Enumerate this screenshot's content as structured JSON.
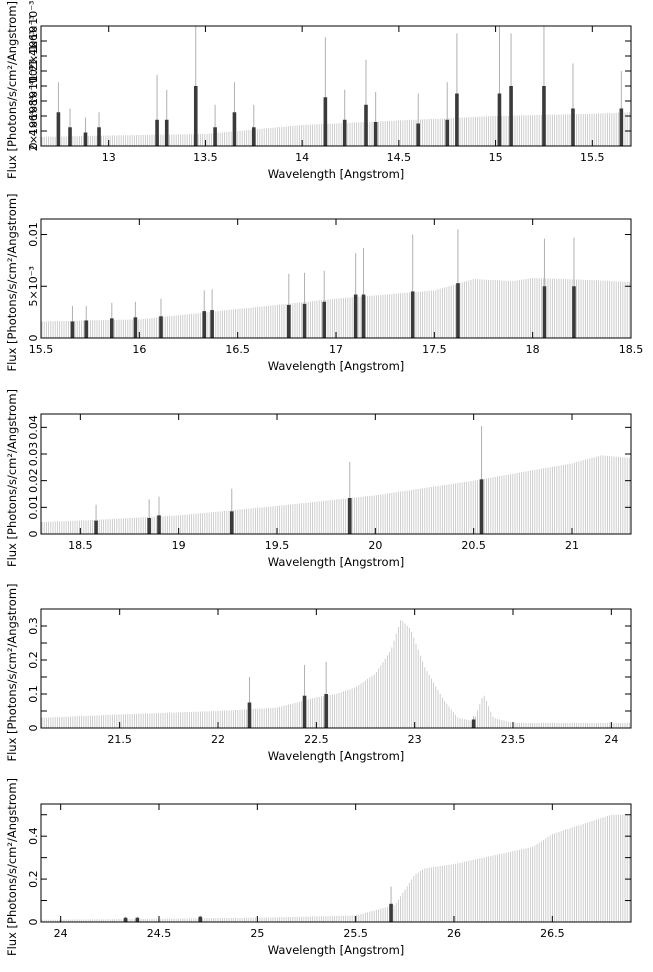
{
  "chart_data": [
    {
      "type": "bar",
      "xlabel": "Wavelength [Angstrom]",
      "ylabel": "Flux [Photons/s/cm²/Angstrom]",
      "xlim": [
        12.65,
        15.7
      ],
      "ylim": [
        0,
        0.0016
      ],
      "xticks": [
        13,
        13.5,
        14,
        14.5,
        15,
        15.5
      ],
      "xtick_labels": [
        "13",
        "13.5",
        "14",
        "14.5",
        "15",
        "15.5"
      ],
      "yticks": [
        0,
        0.0002,
        0.0004,
        0.0006,
        0.0008,
        0.001,
        0.0012,
        0.0014,
        0.0016
      ],
      "ytick_labels": [
        "0",
        "2×10⁻⁴",
        "4×10⁻⁴",
        "6×10⁻⁴",
        "8×10⁻⁴",
        "10⁻³",
        "1.2×10⁻³",
        "1.4×10⁻³",
        "1.6×10⁻³"
      ],
      "continuum": [
        [
          12.65,
          0.00012
        ],
        [
          13.0,
          0.00014
        ],
        [
          13.5,
          0.00016
        ],
        [
          14.0,
          0.00028
        ],
        [
          14.5,
          0.00034
        ],
        [
          15.0,
          0.0004
        ],
        [
          15.5,
          0.00043
        ],
        [
          15.7,
          0.00045
        ]
      ],
      "line_features": [
        {
          "x": 12.74,
          "y": 0.00045,
          "err": 0.0004
        },
        {
          "x": 12.8,
          "y": 0.00025,
          "err": 0.00025
        },
        {
          "x": 12.88,
          "y": 0.00018,
          "err": 0.0002
        },
        {
          "x": 12.95,
          "y": 0.00025,
          "err": 0.0002
        },
        {
          "x": 13.25,
          "y": 0.00035,
          "err": 0.0006
        },
        {
          "x": 13.3,
          "y": 0.00035,
          "err": 0.0004
        },
        {
          "x": 13.45,
          "y": 0.0008,
          "err": 0.0011
        },
        {
          "x": 13.55,
          "y": 0.00025,
          "err": 0.0003
        },
        {
          "x": 13.65,
          "y": 0.00045,
          "err": 0.0004
        },
        {
          "x": 13.75,
          "y": 0.00025,
          "err": 0.0003
        },
        {
          "x": 14.12,
          "y": 0.00065,
          "err": 0.0008
        },
        {
          "x": 14.22,
          "y": 0.00035,
          "err": 0.0004
        },
        {
          "x": 14.33,
          "y": 0.00055,
          "err": 0.0006
        },
        {
          "x": 14.38,
          "y": 0.00032,
          "err": 0.0004
        },
        {
          "x": 14.6,
          "y": 0.0003,
          "err": 0.0004
        },
        {
          "x": 14.75,
          "y": 0.00035,
          "err": 0.0005
        },
        {
          "x": 14.8,
          "y": 0.0007,
          "err": 0.0008
        },
        {
          "x": 15.02,
          "y": 0.0007,
          "err": 0.0009
        },
        {
          "x": 15.08,
          "y": 0.0008,
          "err": 0.0007
        },
        {
          "x": 15.25,
          "y": 0.0008,
          "err": 0.0014
        },
        {
          "x": 15.4,
          "y": 0.0005,
          "err": 0.0006
        },
        {
          "x": 15.65,
          "y": 0.0005,
          "err": 0.0005
        }
      ]
    },
    {
      "type": "bar",
      "xlabel": "Wavelength [Angstrom]",
      "ylabel": "Flux [Photons/s/cm²/Angstrom]",
      "xlim": [
        15.5,
        18.5
      ],
      "ylim": [
        0,
        0.0115
      ],
      "xticks": [
        15.5,
        16,
        16.5,
        17,
        17.5,
        18,
        18.5
      ],
      "xtick_labels": [
        "15.5",
        "16",
        "16.5",
        "17",
        "17.5",
        "18",
        "18.5"
      ],
      "yticks": [
        0,
        0.005,
        0.01
      ],
      "ytick_labels": [
        "0",
        "5×10⁻³",
        "0.01"
      ],
      "continuum": [
        [
          15.5,
          0.0016
        ],
        [
          16.0,
          0.0018
        ],
        [
          16.5,
          0.0028
        ],
        [
          17.0,
          0.0038
        ],
        [
          17.5,
          0.0046
        ],
        [
          17.7,
          0.0057
        ],
        [
          17.9,
          0.0055
        ],
        [
          18.0,
          0.0058
        ],
        [
          18.3,
          0.0056
        ],
        [
          18.5,
          0.0054
        ]
      ],
      "line_features": [
        {
          "x": 15.66,
          "y": 0.0016,
          "err": 0.0015
        },
        {
          "x": 15.73,
          "y": 0.0017,
          "err": 0.0014
        },
        {
          "x": 15.86,
          "y": 0.0019,
          "err": 0.0015
        },
        {
          "x": 15.98,
          "y": 0.002,
          "err": 0.0015
        },
        {
          "x": 16.11,
          "y": 0.0021,
          "err": 0.0017
        },
        {
          "x": 16.33,
          "y": 0.0026,
          "err": 0.002
        },
        {
          "x": 16.37,
          "y": 0.0027,
          "err": 0.002
        },
        {
          "x": 16.76,
          "y": 0.0032,
          "err": 0.003
        },
        {
          "x": 16.84,
          "y": 0.0033,
          "err": 0.003
        },
        {
          "x": 16.94,
          "y": 0.0035,
          "err": 0.003
        },
        {
          "x": 17.1,
          "y": 0.0042,
          "err": 0.004
        },
        {
          "x": 17.14,
          "y": 0.0042,
          "err": 0.0045
        },
        {
          "x": 17.39,
          "y": 0.0045,
          "err": 0.0055
        },
        {
          "x": 17.62,
          "y": 0.0053,
          "err": 0.0052
        },
        {
          "x": 18.06,
          "y": 0.005,
          "err": 0.0046
        },
        {
          "x": 18.21,
          "y": 0.005,
          "err": 0.0047
        }
      ]
    },
    {
      "type": "bar",
      "xlabel": "Wavelength [Angstrom]",
      "ylabel": "Flux [Photons/s/cm²/Angstrom]",
      "xlim": [
        18.3,
        21.3
      ],
      "ylim": [
        0,
        0.045
      ],
      "xticks": [
        18.5,
        19,
        19.5,
        20,
        20.5,
        21
      ],
      "xtick_labels": [
        "18.5",
        "19",
        "19.5",
        "20",
        "20.5",
        "21"
      ],
      "yticks": [
        0,
        0.01,
        0.02,
        0.03,
        0.04
      ],
      "ytick_labels": [
        "0",
        "0.01",
        "0.02",
        "0.03",
        "0.04"
      ],
      "continuum": [
        [
          18.3,
          0.0045
        ],
        [
          18.5,
          0.005
        ],
        [
          19.0,
          0.007
        ],
        [
          19.5,
          0.0105
        ],
        [
          20.0,
          0.0145
        ],
        [
          20.5,
          0.02
        ],
        [
          21.0,
          0.0265
        ],
        [
          21.15,
          0.0295
        ],
        [
          21.3,
          0.0285
        ]
      ],
      "line_features": [
        {
          "x": 18.58,
          "y": 0.005,
          "err": 0.006
        },
        {
          "x": 18.85,
          "y": 0.006,
          "err": 0.007
        },
        {
          "x": 18.9,
          "y": 0.007,
          "err": 0.007
        },
        {
          "x": 19.27,
          "y": 0.0085,
          "err": 0.0085
        },
        {
          "x": 19.87,
          "y": 0.0135,
          "err": 0.0135
        },
        {
          "x": 20.54,
          "y": 0.0205,
          "err": 0.02
        }
      ]
    },
    {
      "type": "bar",
      "xlabel": "Wavelength [Angstrom]",
      "ylabel": "Flux [Photons/s/cm²/Angstrom]",
      "xlim": [
        21.1,
        24.1
      ],
      "ylim": [
        0,
        0.35
      ],
      "xticks": [
        21.5,
        22,
        22.5,
        23,
        23.5,
        24
      ],
      "xtick_labels": [
        "21.5",
        "22",
        "22.5",
        "23",
        "23.5",
        "24"
      ],
      "yticks": [
        0,
        0.05,
        0.1,
        0.15,
        0.2,
        0.25,
        0.3,
        0.35
      ],
      "ytick_labels": [
        "0",
        "",
        "0.1",
        "",
        "0.2",
        "",
        "0.3",
        ""
      ],
      "continuum": [
        [
          21.1,
          0.03
        ],
        [
          21.5,
          0.04
        ],
        [
          22.0,
          0.05
        ],
        [
          22.3,
          0.06
        ],
        [
          22.5,
          0.09
        ],
        [
          22.6,
          0.1
        ],
        [
          22.7,
          0.12
        ],
        [
          22.8,
          0.16
        ],
        [
          22.88,
          0.23
        ],
        [
          22.93,
          0.32
        ],
        [
          22.98,
          0.29
        ],
        [
          23.05,
          0.18
        ],
        [
          23.15,
          0.08
        ],
        [
          23.22,
          0.03
        ],
        [
          23.3,
          0.02
        ],
        [
          23.35,
          0.1
        ],
        [
          23.4,
          0.03
        ],
        [
          23.5,
          0.015
        ],
        [
          24.1,
          0.015
        ]
      ],
      "line_features": [
        {
          "x": 22.16,
          "y": 0.075,
          "err": 0.075
        },
        {
          "x": 22.44,
          "y": 0.095,
          "err": 0.09
        },
        {
          "x": 22.55,
          "y": 0.1,
          "err": 0.095
        },
        {
          "x": 23.3,
          "y": 0.025,
          "err": 0.01
        }
      ]
    },
    {
      "type": "bar",
      "xlabel": "Wavelength [Angstrom]",
      "ylabel": "Flux [Photons/s/cm²/Angstrom]",
      "xlim": [
        23.9,
        26.9
      ],
      "ylim": [
        0,
        0.55
      ],
      "xticks": [
        24,
        24.5,
        25,
        25.5,
        26,
        26.5
      ],
      "xtick_labels": [
        "24",
        "24.5",
        "25",
        "25.5",
        "26",
        "26.5"
      ],
      "yticks": [
        0,
        0.1,
        0.2,
        0.3,
        0.4,
        0.5
      ],
      "ytick_labels": [
        "0",
        "",
        "0.2",
        "",
        "0.4",
        ""
      ],
      "continuum": [
        [
          23.9,
          0.01
        ],
        [
          24.5,
          0.015
        ],
        [
          25.0,
          0.02
        ],
        [
          25.5,
          0.03
        ],
        [
          25.7,
          0.08
        ],
        [
          25.8,
          0.22
        ],
        [
          25.85,
          0.25
        ],
        [
          26.0,
          0.27
        ],
        [
          26.4,
          0.35
        ],
        [
          26.5,
          0.41
        ],
        [
          26.8,
          0.5
        ],
        [
          26.9,
          0.5
        ]
      ],
      "line_features": [
        {
          "x": 24.33,
          "y": 0.02,
          "err": 0.005
        },
        {
          "x": 24.39,
          "y": 0.02,
          "err": 0.005
        },
        {
          "x": 24.71,
          "y": 0.025,
          "err": 0.005
        },
        {
          "x": 25.68,
          "y": 0.085,
          "err": 0.08
        }
      ]
    }
  ]
}
